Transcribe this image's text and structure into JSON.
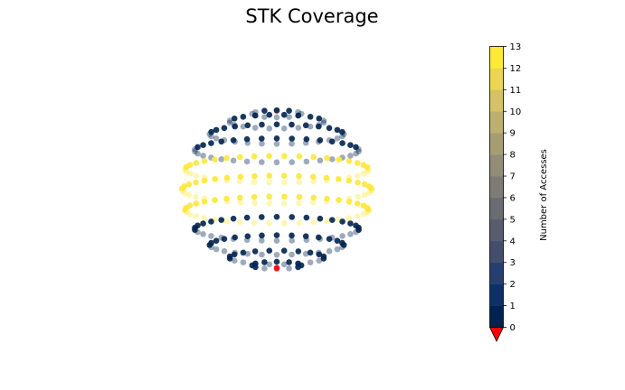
{
  "chart_data": {
    "type": "scatter",
    "title": "STK Coverage",
    "description_of_marks": "3D sphere of ground points colored by access count",
    "colormap": {
      "name": "cividis",
      "stops": [
        "#00224e",
        "#123570",
        "#3b496c",
        "#575d6d",
        "#707173",
        "#8a8779",
        "#a69d75",
        "#c4b56c",
        "#e4cf5b",
        "#fee838"
      ],
      "under_color": "#ff0000"
    },
    "colorbar": {
      "label": "Number of Accesses",
      "min": 0,
      "max": 13,
      "ticks": [
        "0",
        "1",
        "2",
        "3",
        "4",
        "5",
        "6",
        "7",
        "8",
        "9",
        "10",
        "11",
        "12",
        "13"
      ],
      "extend": "min"
    },
    "points": {
      "lat_rows": [
        -75,
        -60,
        -45,
        -30,
        -15,
        0,
        15,
        30,
        45,
        60,
        75
      ],
      "access_values": {
        "-75": 0,
        "-60": 0,
        "-45": 0,
        "-30": 0,
        "-15": 12,
        "0": 13,
        "15": 12,
        "30": 0,
        "45": 0,
        "60": 0,
        "75": 0
      },
      "under_value": -1
    }
  }
}
